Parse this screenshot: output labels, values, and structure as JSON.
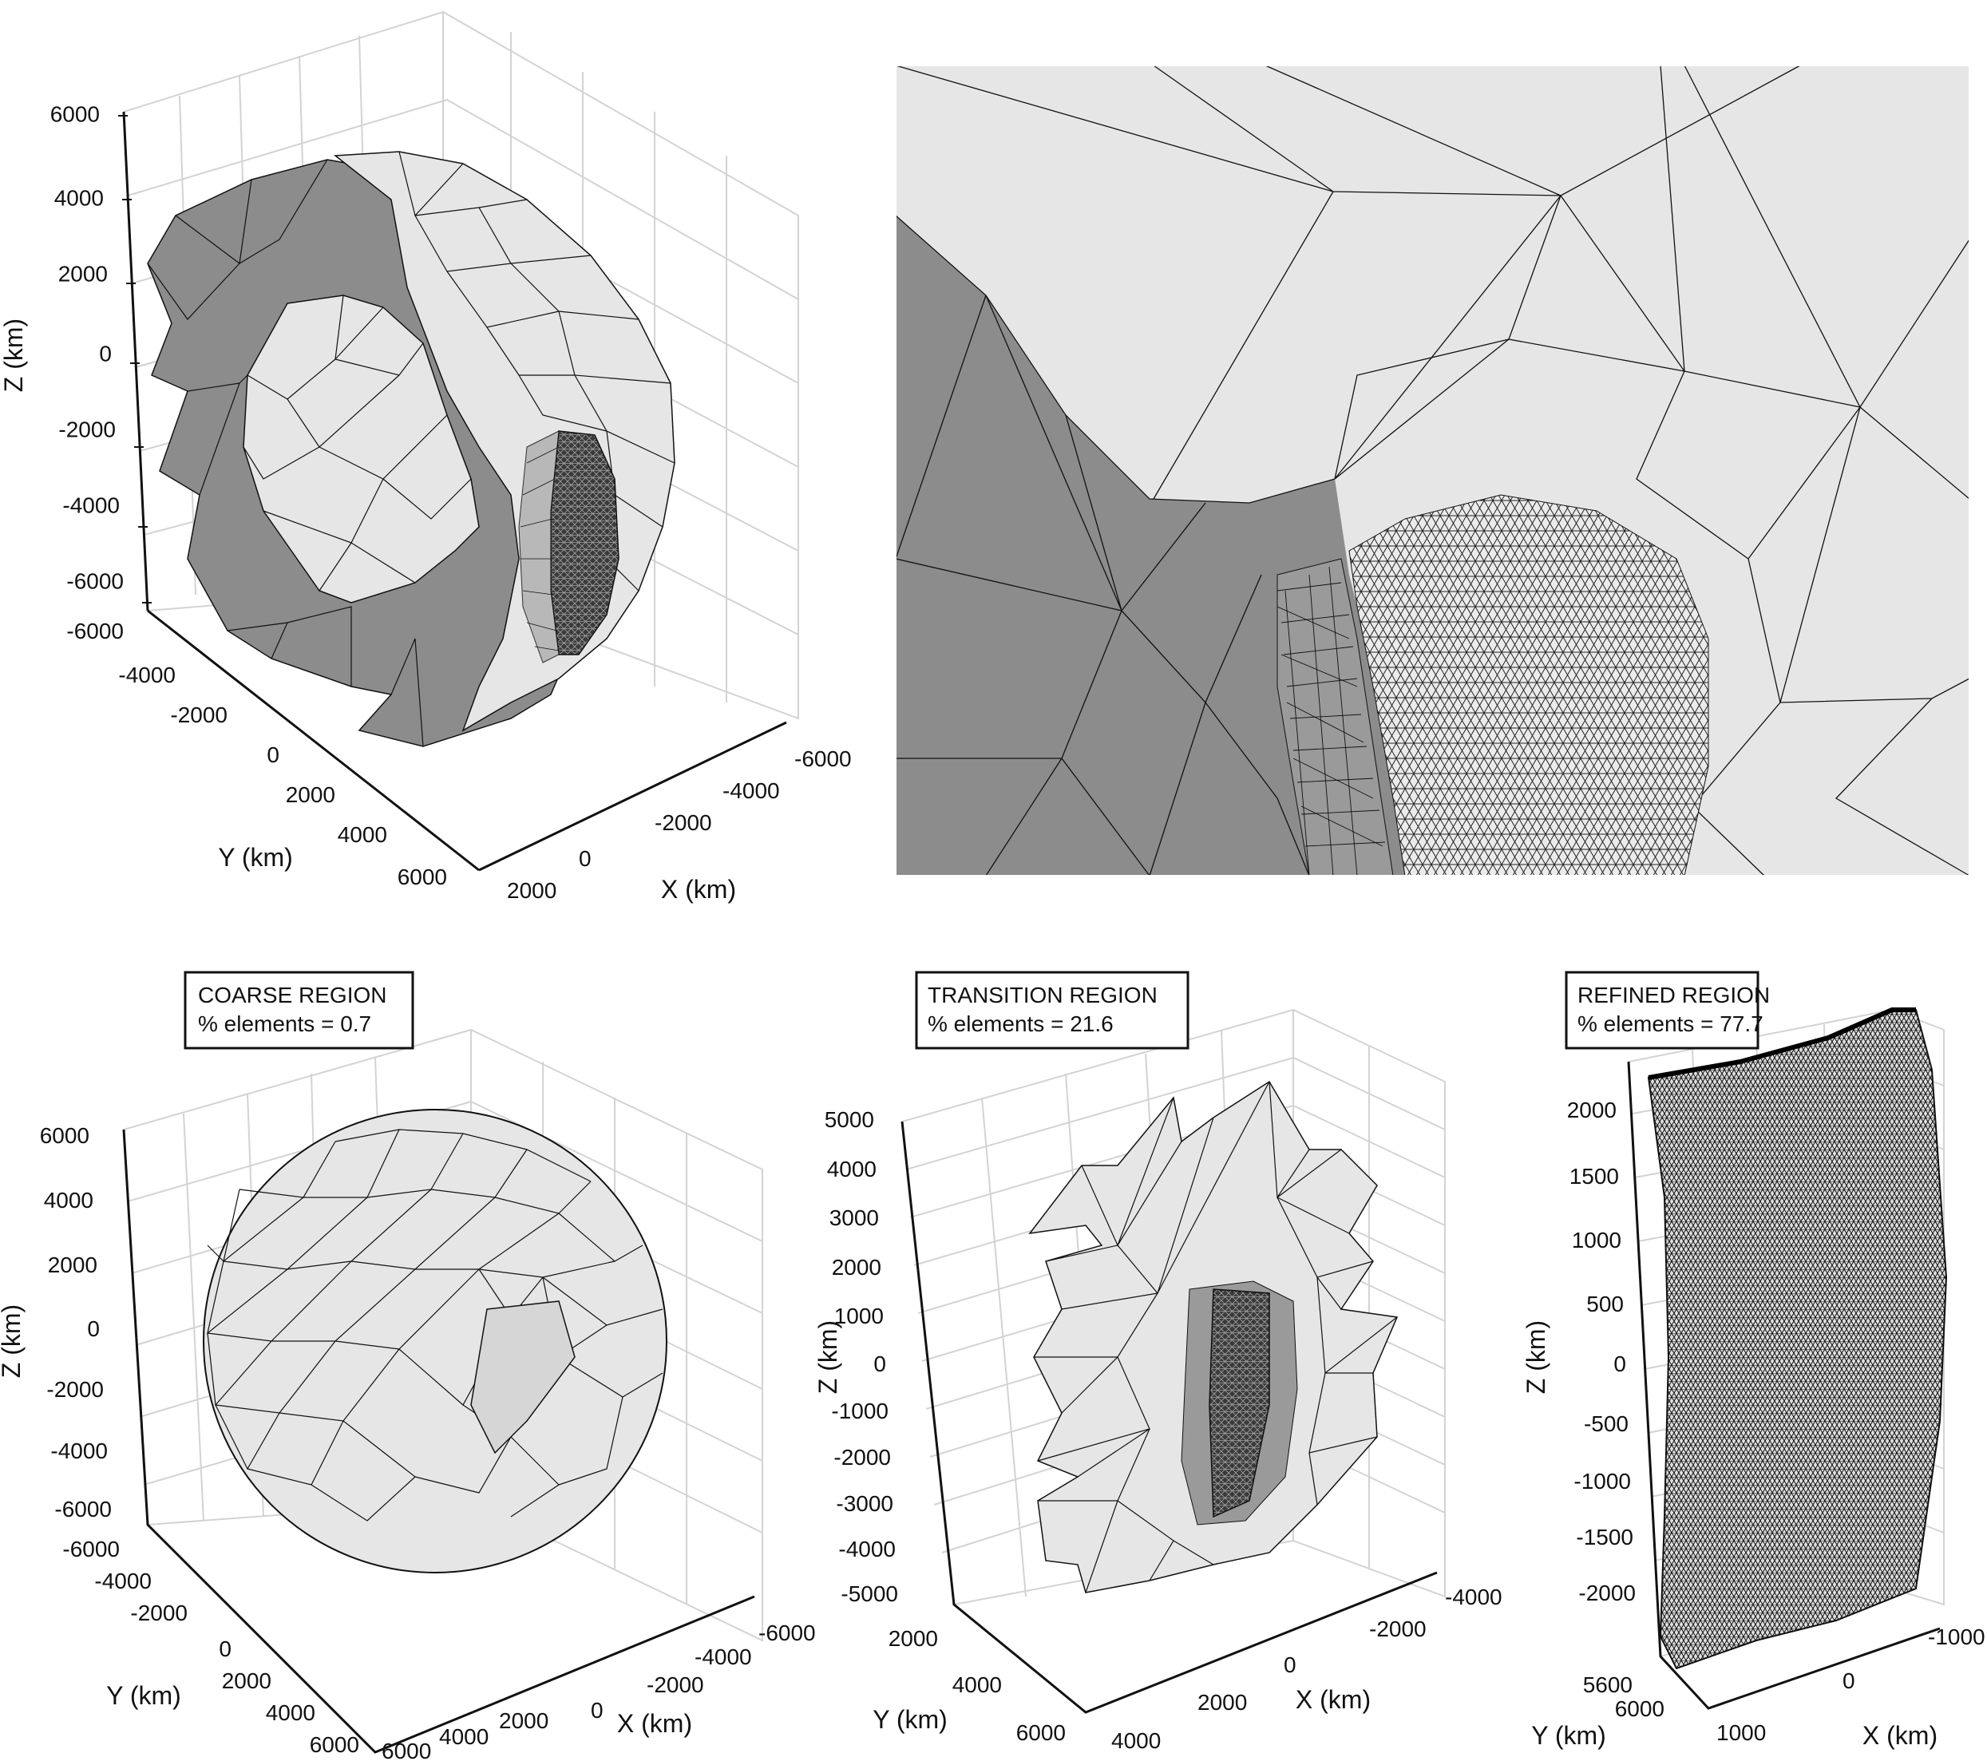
{
  "panels": {
    "full": {
      "z_ticks": [
        "6000",
        "4000",
        "2000",
        "0",
        "-2000",
        "-4000",
        "-6000"
      ],
      "y_ticks": [
        "-6000",
        "-4000",
        "-2000",
        "0",
        "2000",
        "4000",
        "6000"
      ],
      "x_ticks": [
        "-6000",
        "-4000",
        "-2000",
        "0",
        "2000"
      ],
      "z_label": "Z (km)",
      "y_label": "Y (km)",
      "x_label": "X (km)"
    },
    "coarse": {
      "title": "COARSE REGION",
      "subtitle": "% elements = 0.7",
      "z_ticks": [
        "6000",
        "4000",
        "2000",
        "0",
        "-2000",
        "-4000",
        "-6000"
      ],
      "y_ticks": [
        "-6000",
        "-4000",
        "-2000",
        "0",
        "2000",
        "4000",
        "6000"
      ],
      "x_ticks": [
        "-6000",
        "-4000",
        "-2000",
        "0",
        "2000",
        "4000",
        "6000"
      ],
      "z_label": "Z (km)",
      "y_label": "Y (km)",
      "x_label": "X (km)"
    },
    "transition": {
      "title": "TRANSITION REGION",
      "subtitle": "% elements = 21.6",
      "z_ticks": [
        "5000",
        "4000",
        "3000",
        "2000",
        "1000",
        "0",
        "-1000",
        "-2000",
        "-3000",
        "-4000",
        "-5000"
      ],
      "y_ticks": [
        "2000",
        "4000",
        "6000"
      ],
      "x_ticks": [
        "-4000",
        "-2000",
        "0",
        "2000",
        "4000"
      ],
      "z_label": "Z (km)",
      "y_label": "Y (km)",
      "x_label": "X (km)"
    },
    "refined": {
      "title": "REFINED REGION",
      "subtitle": "% elements  = 77.7",
      "z_ticks": [
        "2000",
        "1500",
        "1000",
        "500",
        "0",
        "-500",
        "-1000",
        "-1500",
        "-2000"
      ],
      "y_ticks": [
        "5600",
        "6000"
      ],
      "x_ticks": [
        "-1000",
        "0",
        "1000"
      ],
      "z_label": "Z (km)",
      "y_label": "Y (km)",
      "x_label": "X (km)"
    }
  },
  "colors": {
    "dark_face": "#8c8c8c",
    "light_face": "#e6e6e6",
    "edge": "#111111",
    "grid": "#d0d0d0"
  }
}
